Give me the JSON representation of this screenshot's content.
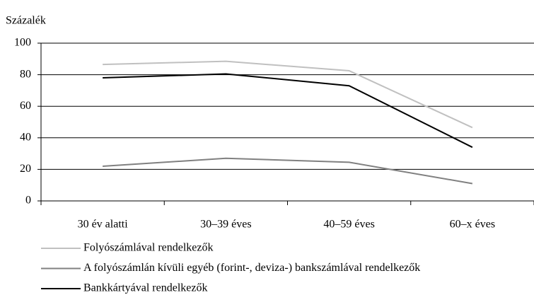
{
  "chart_data": {
    "type": "line",
    "y_label": "Százalék",
    "categories": [
      "30 év alatti",
      "30–39 éves",
      "40–59 éves",
      "60–x éves"
    ],
    "series": [
      {
        "name": "Folyószámlával rendelkezők",
        "color": "#c0c0c0",
        "values": [
          86.5,
          88.5,
          82.5,
          46.5
        ]
      },
      {
        "name": "A folyószámlán kívüli egyéb (forint-, deviza-) bankszámlával rendelkezők",
        "color": "#808080",
        "values": [
          22,
          27,
          24.5,
          11
        ]
      },
      {
        "name": "Bankkártyával rendelkezők",
        "color": "#000000",
        "values": [
          78,
          80.5,
          73,
          34
        ]
      }
    ],
    "ylim": [
      0,
      100
    ],
    "yticks": [
      0,
      20,
      40,
      60,
      80,
      100
    ],
    "grid": true
  }
}
